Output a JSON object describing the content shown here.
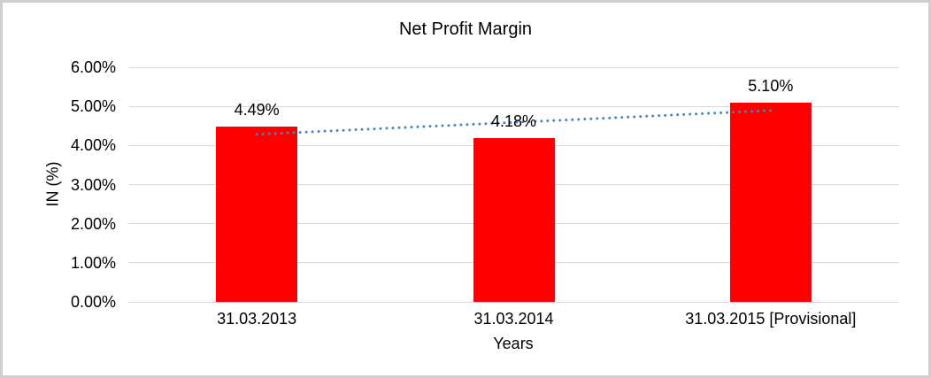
{
  "chart_data": {
    "type": "bar",
    "title": "Net Profit Margin",
    "xlabel": "Years",
    "ylabel": "IN (%)",
    "categories": [
      "31.03.2013",
      "31.03.2014",
      "31.03.2015 [Provisional]"
    ],
    "values": [
      4.49,
      4.18,
      5.1
    ],
    "data_labels": [
      "4.49%",
      "4.18%",
      "5.10%"
    ],
    "ylim": [
      0,
      6
    ],
    "ytick_step": 1,
    "ytick_labels": [
      "0.00%",
      "1.00%",
      "2.00%",
      "3.00%",
      "4.00%",
      "5.00%",
      "6.00%"
    ],
    "grid": true,
    "legend_position": "none",
    "bar_color": "#ff0000",
    "gridline_color": "#d9d9d9",
    "trendline": {
      "type": "linear",
      "style": "dotted",
      "color": "#4f81bd"
    }
  }
}
